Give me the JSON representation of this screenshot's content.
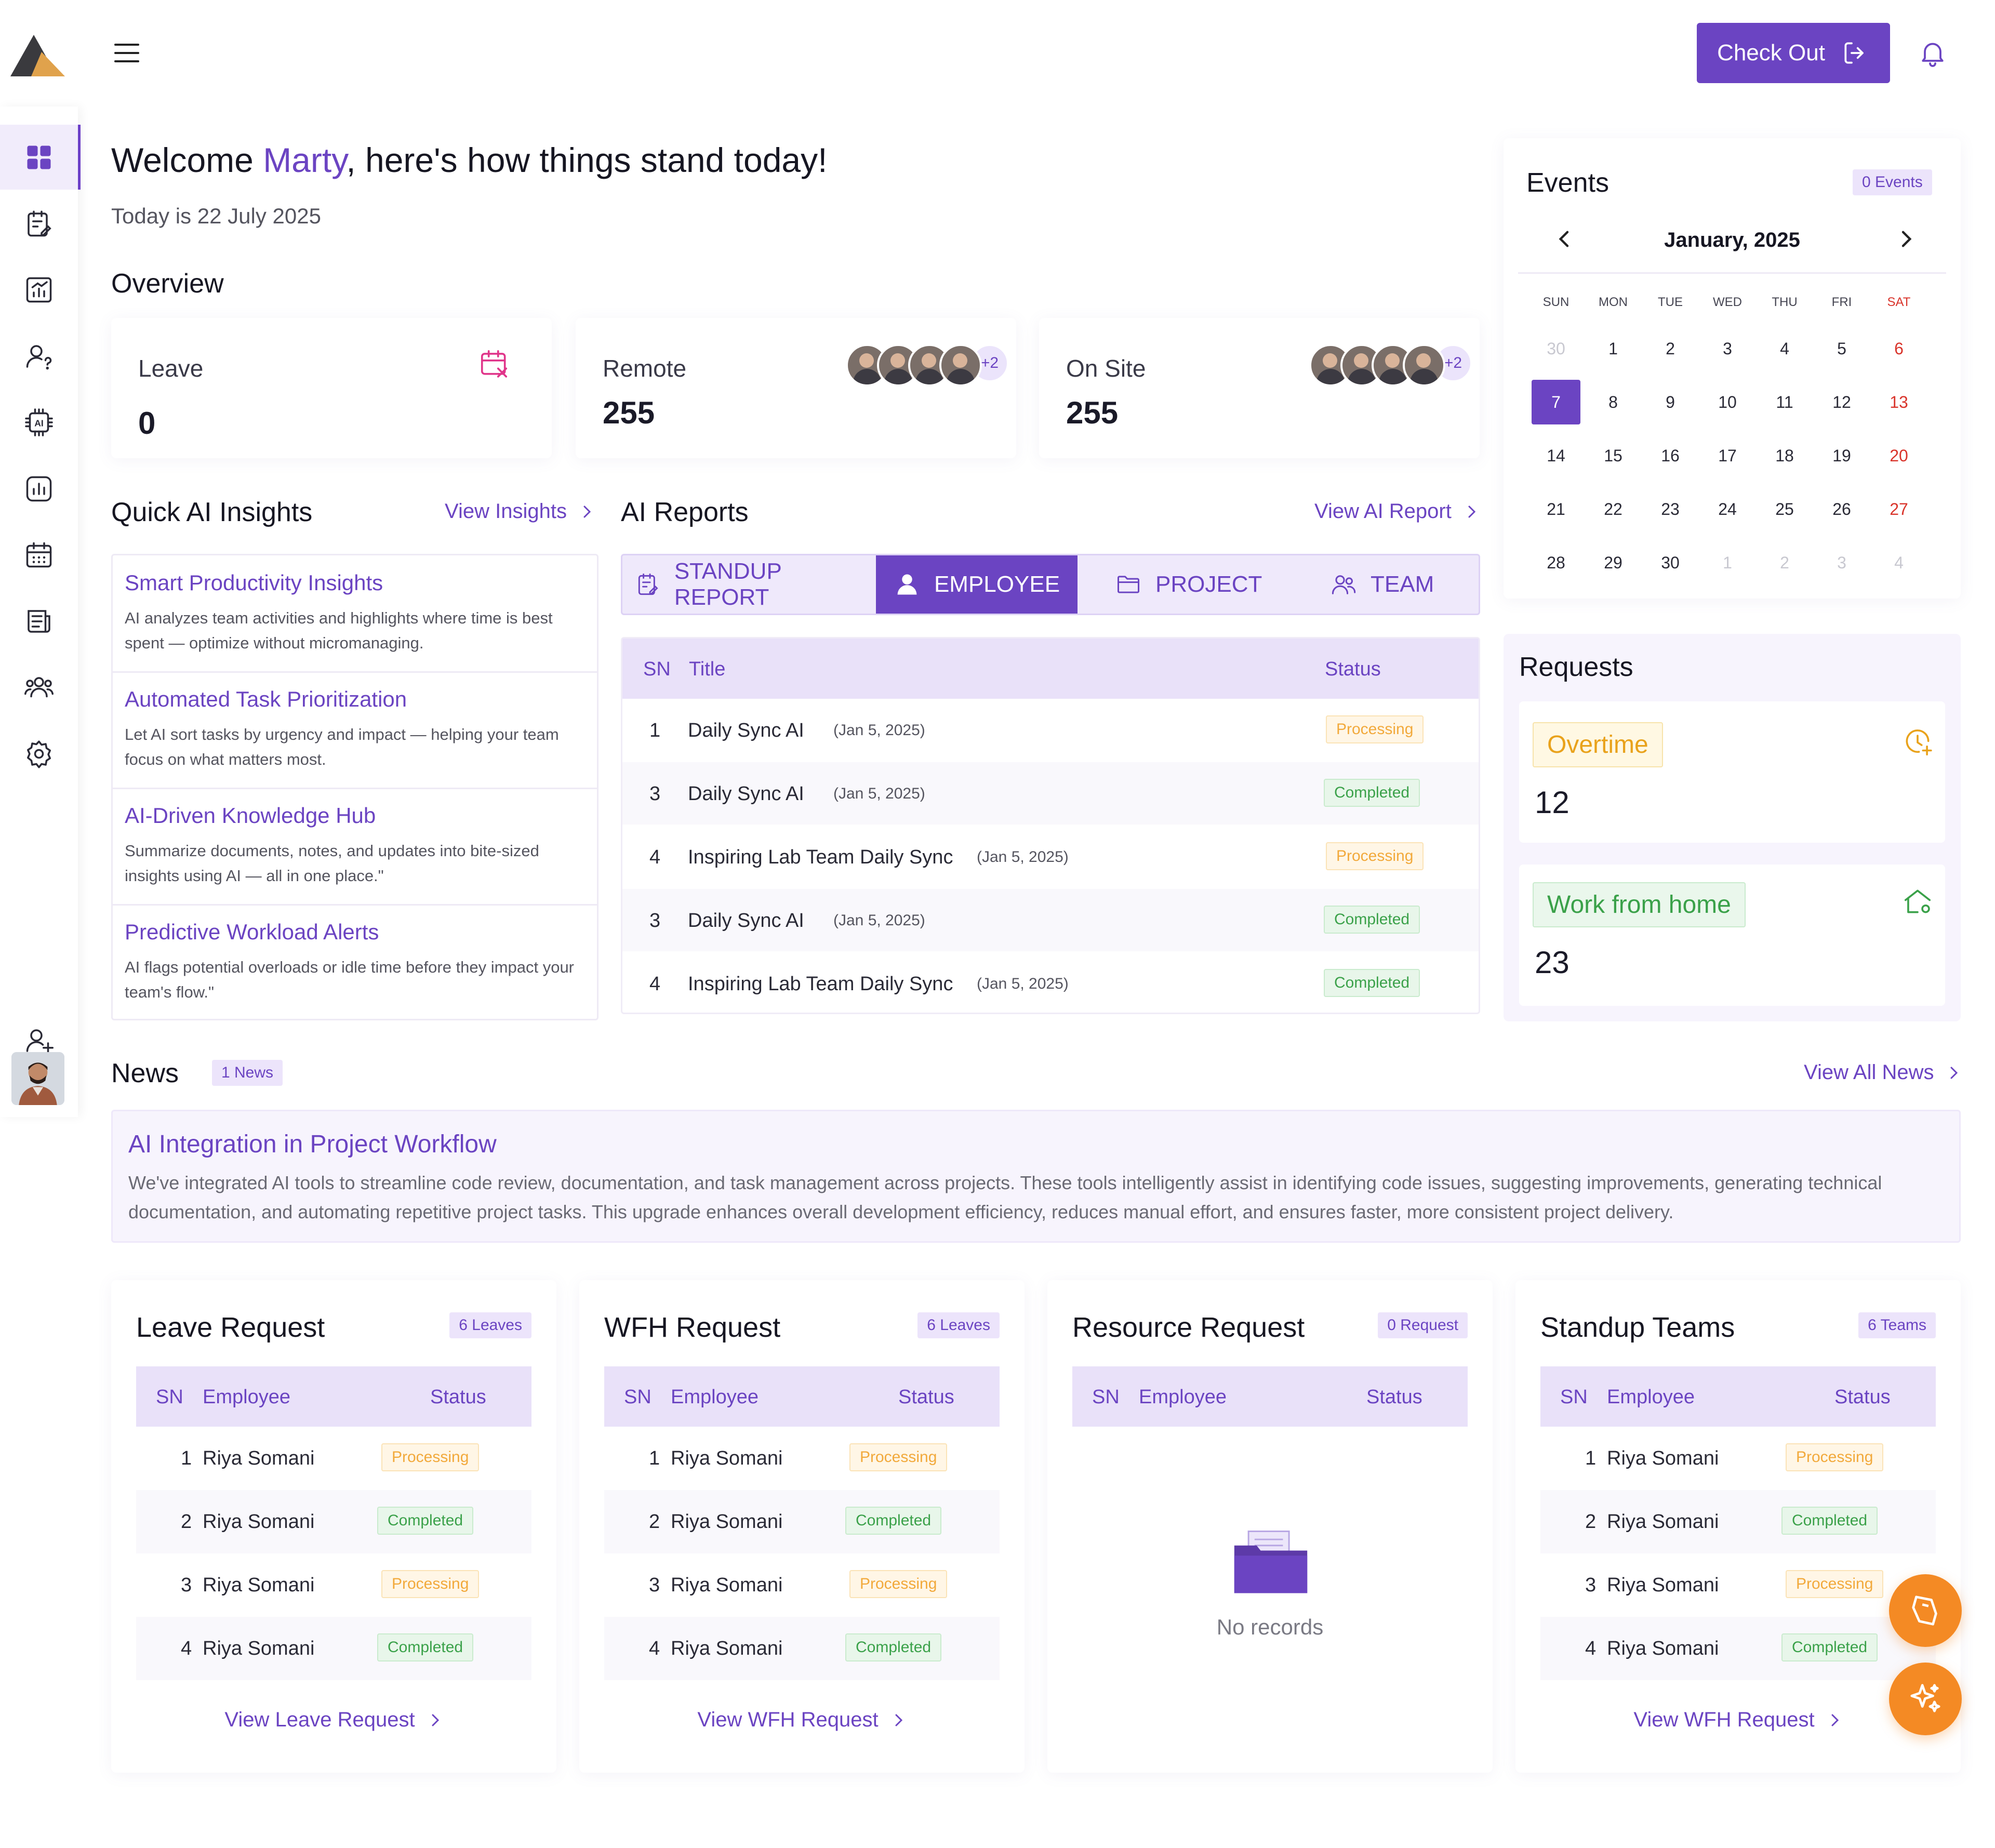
{
  "header": {
    "logo_colors": {
      "dark": "#3a3a3e",
      "gold": "#e0a24c"
    },
    "checkout_label": "Check Out"
  },
  "sidebar": {
    "items": [
      {
        "icon": "dashboard-icon",
        "active": true
      },
      {
        "icon": "tasks-icon"
      },
      {
        "icon": "analytics-icon"
      },
      {
        "icon": "user-question-icon"
      },
      {
        "icon": "ai-chip-icon"
      },
      {
        "icon": "reports-icon"
      },
      {
        "icon": "calendar-icon"
      },
      {
        "icon": "news-icon"
      },
      {
        "icon": "team-icon"
      },
      {
        "icon": "settings-icon"
      }
    ],
    "bottom": [
      {
        "icon": "add-user-icon"
      },
      {
        "icon": "avatar"
      }
    ]
  },
  "welcome": {
    "prefix": "Welcome ",
    "name": "Marty",
    "suffix": ", here's how things stand today!",
    "date": "Today is 22 July 2025"
  },
  "overview": {
    "title": "Overview",
    "cards": [
      {
        "label": "Leave",
        "value": "0"
      },
      {
        "label": "Remote",
        "value": "255",
        "more": "+2"
      },
      {
        "label": "On Site",
        "value": "255",
        "more": "+2"
      }
    ]
  },
  "insights": {
    "title": "Quick AI Insights",
    "link": "View Insights",
    "items": [
      {
        "title": "Smart Productivity Insights",
        "desc": "AI analyzes team activities and highlights where time is best spent — optimize without micromanaging."
      },
      {
        "title": "Automated Task Prioritization",
        "desc": "Let AI sort tasks by urgency and impact — helping your team focus on what matters most."
      },
      {
        "title": "AI-Driven Knowledge Hub",
        "desc": "Summarize documents, notes, and updates into bite-sized insights using AI — all in one place.\""
      },
      {
        "title": "Predictive Workload Alerts",
        "desc": "AI flags potential overloads or idle time before they impact your team's flow.\""
      }
    ]
  },
  "ai_reports": {
    "title": "AI Reports",
    "link": "View AI Report",
    "tabs": [
      {
        "label": "STANDUP REPORT"
      },
      {
        "label": "EMPLOYEE",
        "active": true
      },
      {
        "label": "PROJECT"
      },
      {
        "label": "TEAM"
      }
    ],
    "columns": {
      "sn": "SN",
      "title": "Title",
      "status": "Status"
    },
    "rows": [
      {
        "sn": "1",
        "title": "Daily Sync AI",
        "date": "(Jan 5, 2025)",
        "status": "Processing"
      },
      {
        "sn": "3",
        "title": "Daily Sync AI",
        "date": "(Jan 5, 2025)",
        "status": "Completed"
      },
      {
        "sn": "4",
        "title": "Inspiring Lab Team Daily Sync",
        "date": "(Jan 5, 2025)",
        "status": "Processing"
      },
      {
        "sn": "3",
        "title": "Daily Sync AI",
        "date": "(Jan 5, 2025)",
        "status": "Completed"
      },
      {
        "sn": "4",
        "title": "Inspiring Lab Team Daily Sync",
        "date": "(Jan 5, 2025)",
        "status": "Completed"
      }
    ]
  },
  "events": {
    "title": "Events",
    "badge": "0 Events",
    "month": "January, 2025",
    "dow": [
      "SUN",
      "MON",
      "TUE",
      "WED",
      "THU",
      "FRI",
      "SAT"
    ],
    "weeks": [
      [
        "30",
        "1",
        "2",
        "3",
        "4",
        "5",
        "6"
      ],
      [
        "7",
        "8",
        "9",
        "10",
        "11",
        "12",
        "13"
      ],
      [
        "14",
        "15",
        "16",
        "17",
        "18",
        "19",
        "20"
      ],
      [
        "21",
        "22",
        "23",
        "24",
        "25",
        "26",
        "27"
      ],
      [
        "28",
        "29",
        "30",
        "1",
        "2",
        "3",
        "4"
      ]
    ],
    "selected": "7"
  },
  "requests": {
    "title": "Requests",
    "items": [
      {
        "label": "Overtime",
        "value": "12",
        "color": "#e9a21b"
      },
      {
        "label": "Work from home",
        "value": "23",
        "color": "#3aa149"
      }
    ]
  },
  "news": {
    "title": "News",
    "badge": "1 News",
    "link": "View All News",
    "item": {
      "title": "AI Integration in Project Workflow",
      "body": "We've integrated AI tools to streamline code review, documentation, and task management across projects. These tools intelligently assist in identifying code issues, suggesting improvements, generating technical documentation, and automating repetitive project tasks. This upgrade enhances overall development efficiency, reduces manual effort, and ensures faster, more consistent project delivery."
    }
  },
  "bottom_cards": [
    {
      "title": "Leave Request",
      "badge": "6 Leaves",
      "link": "View Leave Request",
      "columns": {
        "sn": "SN",
        "employee": "Employee",
        "status": "Status"
      },
      "rows": [
        {
          "sn": "1",
          "name": "Riya Somani",
          "status": "Processing"
        },
        {
          "sn": "2",
          "name": "Riya Somani",
          "status": "Completed"
        },
        {
          "sn": "3",
          "name": "Riya Somani",
          "status": "Processing"
        },
        {
          "sn": "4",
          "name": "Riya Somani",
          "status": "Completed"
        }
      ]
    },
    {
      "title": "WFH Request",
      "badge": "6 Leaves",
      "link": "View WFH Request",
      "columns": {
        "sn": "SN",
        "employee": "Employee",
        "status": "Status"
      },
      "rows": [
        {
          "sn": "1",
          "name": "Riya Somani",
          "status": "Processing"
        },
        {
          "sn": "2",
          "name": "Riya Somani",
          "status": "Completed"
        },
        {
          "sn": "3",
          "name": "Riya Somani",
          "status": "Processing"
        },
        {
          "sn": "4",
          "name": "Riya Somani",
          "status": "Completed"
        }
      ]
    },
    {
      "title": "Resource Request",
      "badge": "0 Request",
      "empty": "No records",
      "columns": {
        "sn": "SN",
        "employee": "Employee",
        "status": "Status"
      },
      "rows": []
    },
    {
      "title": "Standup Teams",
      "badge": "6 Teams",
      "link": "View WFH Request",
      "columns": {
        "sn": "SN",
        "employee": "Employee",
        "status": "Status"
      },
      "rows": [
        {
          "sn": "1",
          "name": "Riya Somani",
          "status": "Processing"
        },
        {
          "sn": "2",
          "name": "Riya Somani",
          "status": "Completed"
        },
        {
          "sn": "3",
          "name": "Riya Somani",
          "status": "Processing"
        },
        {
          "sn": "4",
          "name": "Riya Somani",
          "status": "Completed"
        }
      ]
    }
  ],
  "fabs": [
    {
      "icon": "feedback-icon"
    },
    {
      "icon": "ai-sparkle-icon"
    }
  ],
  "colors": {
    "primary": "#6b44c2",
    "accent": "#f48a24",
    "processing": "#f2a93b",
    "completed": "#3aa149"
  }
}
